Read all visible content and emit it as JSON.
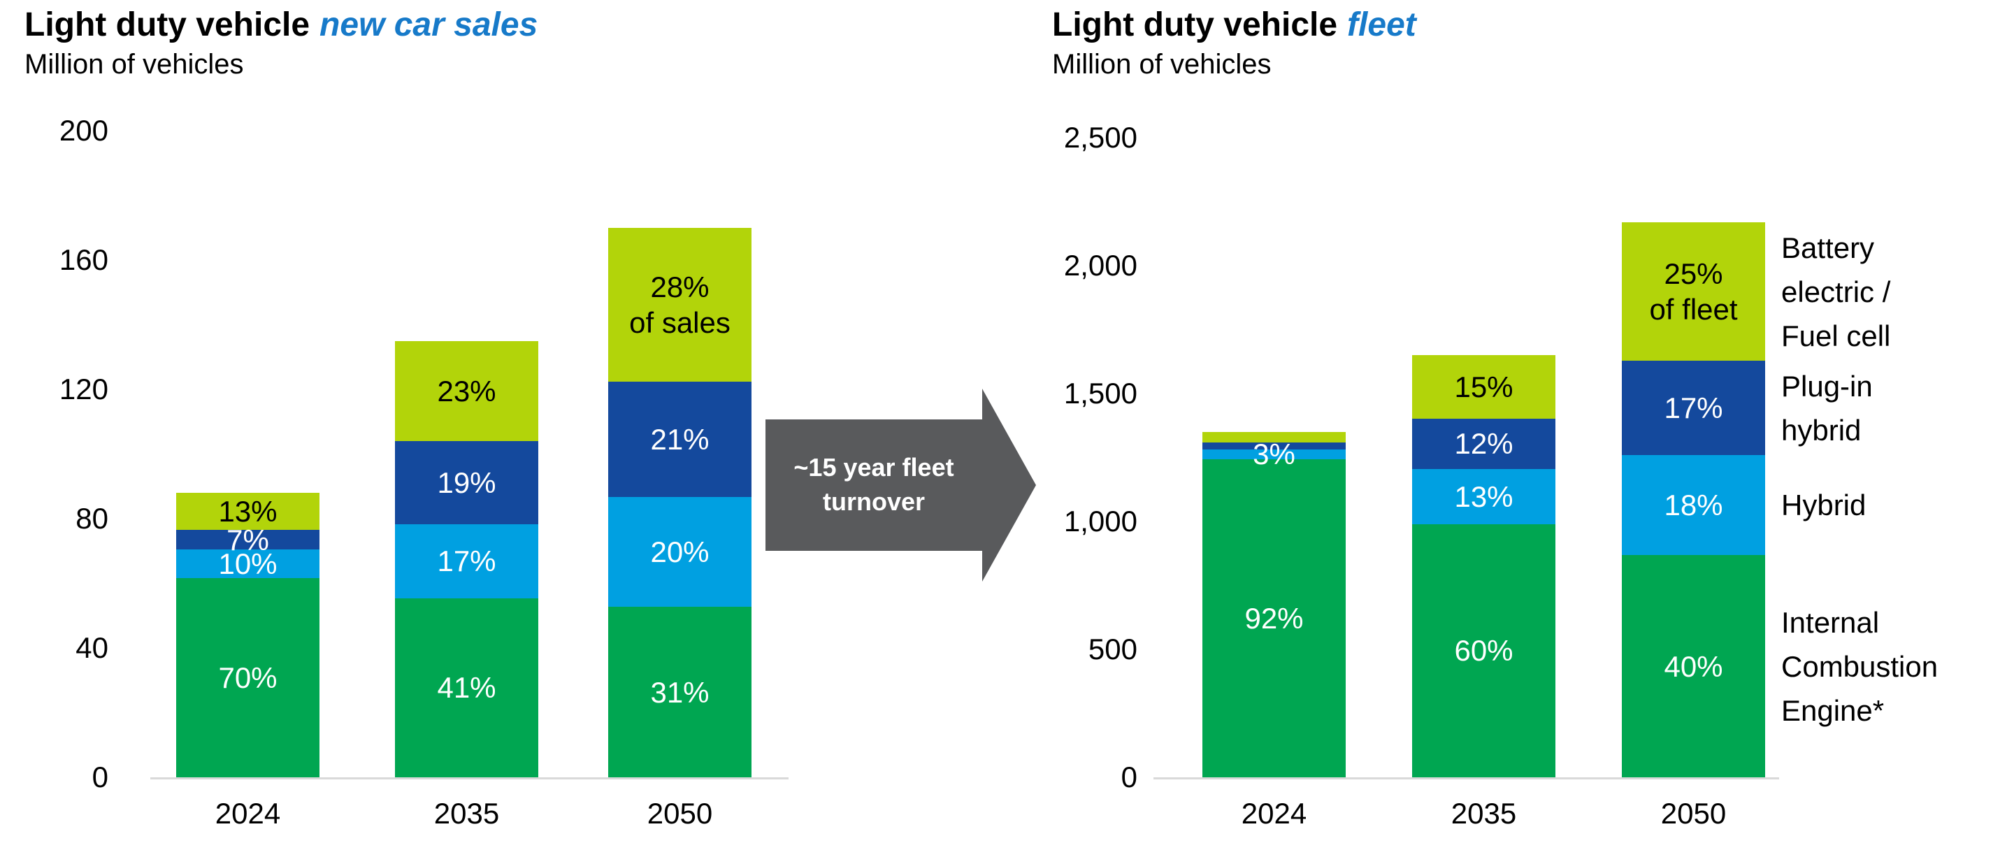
{
  "page": {
    "background": "#ffffff"
  },
  "colors": {
    "green": "#00a651",
    "light_blue": "#00a0e1",
    "dark_blue": "#14499d",
    "lime": "#b2d40a",
    "arrow_gray": "#595a5c",
    "axis_line": "#d9d9d9",
    "title_accent": "#177ac9",
    "text_black": "#000000",
    "label_white": "#ffffff"
  },
  "arrow": {
    "label": "~15 year fleet\nturnover"
  },
  "legend": {
    "items": [
      {
        "label": "Battery\nelectric /\nFuel cell",
        "color_key": "lime"
      },
      {
        "label": "Plug-in\nhybrid",
        "color_key": "dark_blue"
      },
      {
        "label": "Hybrid",
        "color_key": "light_blue"
      },
      {
        "label": "Internal\nCombustion\nEngine*",
        "color_key": "green"
      }
    ]
  },
  "chart_data": [
    {
      "type": "bar",
      "stacked": true,
      "title": "Light duty vehicle",
      "title_accent": "new car sales",
      "subtitle": "Million of vehicles",
      "ylim": [
        0,
        200
      ],
      "yticks": [
        0,
        40,
        80,
        120,
        160,
        200
      ],
      "ytick_labels": [
        "0",
        "40",
        "80",
        "120",
        "160",
        "200"
      ],
      "categories": [
        "2024",
        "2035",
        "2050"
      ],
      "totals": [
        88,
        135,
        170
      ],
      "grid": false,
      "series": [
        {
          "name": "Internal Combustion Engine*",
          "color_key": "green",
          "label_color": "#ffffff",
          "pct": [
            70,
            41,
            31
          ],
          "labels": [
            "70%",
            "41%",
            "31%"
          ]
        },
        {
          "name": "Hybrid",
          "color_key": "light_blue",
          "label_color": "#ffffff",
          "pct": [
            10,
            17,
            20
          ],
          "labels": [
            "10%",
            "17%",
            "20%"
          ]
        },
        {
          "name": "Plug-in hybrid",
          "color_key": "dark_blue",
          "label_color": "#ffffff",
          "pct": [
            7,
            19,
            21
          ],
          "labels": [
            "7%",
            "19%",
            "21%"
          ]
        },
        {
          "name": "Battery electric / Fuel cell",
          "color_key": "lime",
          "label_color": "#000000",
          "pct": [
            13,
            23,
            28
          ],
          "labels": [
            "13%",
            "23%",
            "28%\nof sales"
          ]
        }
      ]
    },
    {
      "type": "bar",
      "stacked": true,
      "title": "Light duty vehicle",
      "title_accent": "fleet",
      "subtitle": "Million of vehicles",
      "ylim": [
        0,
        2500
      ],
      "yticks": [
        0,
        500,
        1000,
        1500,
        2000,
        2500
      ],
      "ytick_labels": [
        "0",
        "500",
        "1,000",
        "1,500",
        "2,000",
        "2,500"
      ],
      "categories": [
        "2024",
        "2035",
        "2050"
      ],
      "totals": [
        1350,
        1650,
        2170
      ],
      "grid": false,
      "series": [
        {
          "name": "Internal Combustion Engine*",
          "color_key": "green",
          "label_color": "#ffffff",
          "pct": [
            92,
            60,
            40
          ],
          "labels": [
            "92%",
            "60%",
            "40%"
          ]
        },
        {
          "name": "Hybrid",
          "color_key": "light_blue",
          "label_color": "#ffffff",
          "pct": [
            3,
            13,
            18
          ],
          "labels": [
            "3%",
            "13%",
            "18%"
          ]
        },
        {
          "name": "Plug-in hybrid",
          "color_key": "dark_blue",
          "label_color": "#ffffff",
          "pct": [
            2,
            12,
            17
          ],
          "labels": [
            "",
            "12%",
            "17%"
          ]
        },
        {
          "name": "Battery electric / Fuel cell",
          "color_key": "lime",
          "label_color": "#000000",
          "pct": [
            3,
            15,
            25
          ],
          "labels": [
            "",
            "15%",
            "25%\nof fleet"
          ]
        }
      ]
    }
  ]
}
